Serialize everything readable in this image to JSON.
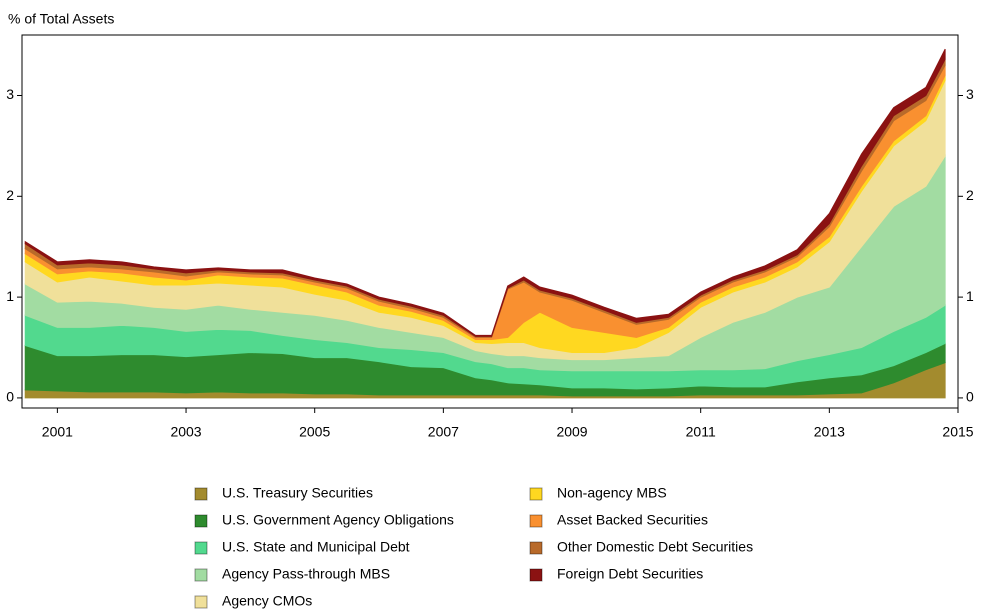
{
  "chart_data": {
    "type": "stacked_area",
    "title": "% of Total Assets",
    "x": [
      2000.5,
      2001,
      2001.5,
      2002,
      2002.5,
      2003,
      2003.5,
      2004,
      2004.5,
      2005,
      2005.5,
      2006,
      2006.5,
      2007,
      2007.5,
      2007.75,
      2008,
      2008.25,
      2008.5,
      2009,
      2009.5,
      2010,
      2010.5,
      2011,
      2011.5,
      2012,
      2012.5,
      2013,
      2013.5,
      2014,
      2014.5,
      2014.8
    ],
    "xlim": [
      2000.45,
      2015
    ],
    "xticks": [
      2001,
      2003,
      2005,
      2007,
      2009,
      2011,
      2013,
      2015
    ],
    "ylim": [
      -0.1,
      3.6
    ],
    "yticks": [
      0,
      1,
      2,
      3
    ],
    "series": [
      {
        "name": "U.S. Treasury Securities",
        "color": "#a38b2e",
        "values": [
          0.08,
          0.07,
          0.06,
          0.06,
          0.06,
          0.05,
          0.06,
          0.05,
          0.05,
          0.04,
          0.04,
          0.03,
          0.03,
          0.03,
          0.03,
          0.03,
          0.03,
          0.03,
          0.03,
          0.02,
          0.02,
          0.02,
          0.02,
          0.03,
          0.03,
          0.03,
          0.03,
          0.04,
          0.05,
          0.15,
          0.28,
          0.35
        ]
      },
      {
        "name": "U.S. Government Agency Obligations",
        "color": "#2e8b2e",
        "values": [
          0.44,
          0.35,
          0.36,
          0.37,
          0.37,
          0.36,
          0.37,
          0.4,
          0.39,
          0.36,
          0.36,
          0.33,
          0.28,
          0.27,
          0.17,
          0.15,
          0.12,
          0.11,
          0.1,
          0.08,
          0.08,
          0.07,
          0.08,
          0.09,
          0.08,
          0.08,
          0.13,
          0.16,
          0.18,
          0.17,
          0.17,
          0.19
        ]
      },
      {
        "name": "U.S. State and Municipal Debt",
        "color": "#52d98e",
        "values": [
          0.3,
          0.28,
          0.28,
          0.29,
          0.27,
          0.25,
          0.25,
          0.22,
          0.18,
          0.18,
          0.15,
          0.14,
          0.17,
          0.15,
          0.16,
          0.16,
          0.15,
          0.16,
          0.15,
          0.17,
          0.17,
          0.18,
          0.17,
          0.16,
          0.17,
          0.18,
          0.21,
          0.23,
          0.27,
          0.34,
          0.35,
          0.38
        ]
      },
      {
        "name": "Agency Pass-through MBS",
        "color": "#a2dca2",
        "values": [
          0.31,
          0.25,
          0.26,
          0.22,
          0.2,
          0.22,
          0.24,
          0.21,
          0.23,
          0.24,
          0.22,
          0.2,
          0.17,
          0.15,
          0.11,
          0.1,
          0.12,
          0.12,
          0.12,
          0.11,
          0.11,
          0.13,
          0.15,
          0.32,
          0.47,
          0.56,
          0.63,
          0.67,
          1.0,
          1.24,
          1.3,
          1.48
        ]
      },
      {
        "name": "Agency CMOs",
        "color": "#f0e09a",
        "values": [
          0.22,
          0.2,
          0.24,
          0.22,
          0.22,
          0.24,
          0.22,
          0.24,
          0.25,
          0.21,
          0.2,
          0.15,
          0.15,
          0.12,
          0.08,
          0.1,
          0.13,
          0.13,
          0.1,
          0.07,
          0.07,
          0.1,
          0.23,
          0.3,
          0.3,
          0.3,
          0.3,
          0.45,
          0.55,
          0.6,
          0.65,
          0.75
        ]
      },
      {
        "name": "Non-agency MBS",
        "color": "#ffd820",
        "values": [
          0.08,
          0.08,
          0.06,
          0.08,
          0.08,
          0.05,
          0.08,
          0.08,
          0.09,
          0.09,
          0.08,
          0.07,
          0.06,
          0.05,
          0.03,
          0.04,
          0.05,
          0.2,
          0.35,
          0.25,
          0.2,
          0.1,
          0.05,
          0.05,
          0.05,
          0.05,
          0.05,
          0.05,
          0.05,
          0.05,
          0.05,
          0.05
        ]
      },
      {
        "name": "Asset Backed Securities",
        "color": "#f99030",
        "values": [
          0.05,
          0.05,
          0.04,
          0.04,
          0.05,
          0.04,
          0.03,
          0.03,
          0.03,
          0.03,
          0.04,
          0.04,
          0.03,
          0.03,
          0.02,
          0.02,
          0.48,
          0.4,
          0.2,
          0.27,
          0.2,
          0.13,
          0.08,
          0.05,
          0.05,
          0.05,
          0.05,
          0.1,
          0.15,
          0.2,
          0.15,
          0.1
        ]
      },
      {
        "name": "Other Domestic Debt Securities",
        "color": "#b86a2a",
        "values": [
          0.05,
          0.04,
          0.04,
          0.04,
          0.03,
          0.03,
          0.02,
          0.02,
          0.02,
          0.02,
          0.02,
          0.02,
          0.02,
          0.02,
          0.01,
          0.01,
          0.01,
          0.02,
          0.02,
          0.02,
          0.02,
          0.02,
          0.02,
          0.02,
          0.02,
          0.02,
          0.02,
          0.03,
          0.05,
          0.05,
          0.05,
          0.06
        ]
      },
      {
        "name": "Foreign Debt Securities",
        "color": "#8b1212",
        "values": [
          0.02,
          0.03,
          0.03,
          0.03,
          0.02,
          0.03,
          0.02,
          0.02,
          0.03,
          0.02,
          0.02,
          0.02,
          0.02,
          0.02,
          0.01,
          0.01,
          0.02,
          0.03,
          0.03,
          0.03,
          0.03,
          0.04,
          0.03,
          0.03,
          0.03,
          0.04,
          0.05,
          0.1,
          0.12,
          0.08,
          0.08,
          0.1
        ]
      }
    ]
  }
}
